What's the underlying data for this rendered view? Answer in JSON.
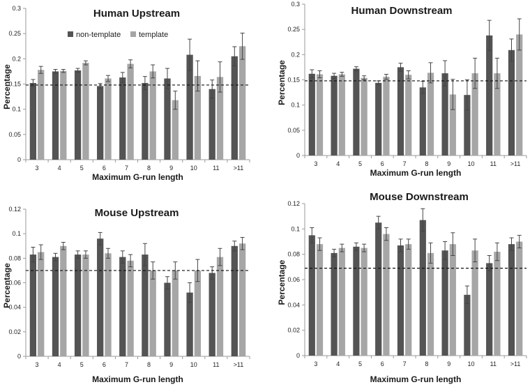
{
  "chart_data": [
    {
      "type": "bar",
      "title": "Human Upstream",
      "xlabel": "Maximum G-run length",
      "ylabel": "Percentage",
      "categories": [
        "3",
        "4",
        "5",
        "6",
        "7",
        "8",
        "9",
        "10",
        "11",
        ">11"
      ],
      "ylim": [
        0,
        0.3
      ],
      "yticks": [
        "0",
        "0.05",
        "0.1",
        "0.15",
        "0.2",
        "0.25",
        "0.3"
      ],
      "reference_line": 0.148,
      "legend": {
        "position": "top-left",
        "entries": [
          "non-template",
          "template"
        ]
      },
      "series": [
        {
          "name": "non-template",
          "color": "#545454",
          "values": [
            0.152,
            0.175,
            0.177,
            0.146,
            0.163,
            0.152,
            0.161,
            0.208,
            0.14,
            0.205
          ],
          "errors": [
            0.007,
            0.004,
            0.004,
            0.005,
            0.01,
            0.013,
            0.02,
            0.031,
            0.018,
            0.019
          ]
        },
        {
          "name": "template",
          "color": "#a6a6a6",
          "values": [
            0.178,
            0.176,
            0.192,
            0.161,
            0.19,
            0.175,
            0.118,
            0.166,
            0.164,
            0.225
          ],
          "errors": [
            0.007,
            0.003,
            0.004,
            0.006,
            0.008,
            0.013,
            0.018,
            0.03,
            0.03,
            0.026
          ]
        }
      ]
    },
    {
      "type": "bar",
      "title": "Human Downstream",
      "xlabel": "Maximum G-run length",
      "ylabel": "Percentage",
      "categories": [
        "3",
        "4",
        "5",
        "6",
        "7",
        "8",
        "9",
        "10",
        "11",
        ">11"
      ],
      "ylim": [
        0,
        0.3
      ],
      "yticks": [
        "0",
        "0.05",
        "0.1",
        "0.15",
        "0.2",
        "0.25",
        "0.3"
      ],
      "reference_line": 0.148,
      "series": [
        {
          "name": "non-template",
          "color": "#545454",
          "values": [
            0.162,
            0.158,
            0.172,
            0.144,
            0.175,
            0.135,
            0.163,
            0.12,
            0.238,
            0.209
          ],
          "errors": [
            0.008,
            0.005,
            0.004,
            0.004,
            0.008,
            0.012,
            0.025,
            0.03,
            0.03,
            0.022
          ]
        },
        {
          "name": "template",
          "color": "#a6a6a6",
          "values": [
            0.161,
            0.161,
            0.154,
            0.156,
            0.16,
            0.164,
            0.121,
            0.163,
            0.163,
            0.24
          ],
          "errors": [
            0.007,
            0.004,
            0.004,
            0.005,
            0.008,
            0.02,
            0.03,
            0.03,
            0.03,
            0.031
          ]
        }
      ]
    },
    {
      "type": "bar",
      "title": "Mouse Upstream",
      "xlabel": "Maximum G-run length",
      "ylabel": "Percentage",
      "categories": [
        "3",
        "4",
        "5",
        "6",
        "7",
        "8",
        "9",
        "10",
        "11",
        ">11"
      ],
      "ylim": [
        0,
        0.12
      ],
      "yticks": [
        "0",
        "0.02",
        "0.04",
        "0.06",
        "0.08",
        "0.1",
        "0.12"
      ],
      "reference_line": 0.07,
      "series": [
        {
          "name": "non-template",
          "color": "#545454",
          "values": [
            0.083,
            0.081,
            0.083,
            0.096,
            0.081,
            0.083,
            0.06,
            0.052,
            0.068,
            0.09
          ],
          "errors": [
            0.006,
            0.003,
            0.003,
            0.005,
            0.005,
            0.009,
            0.005,
            0.008,
            0.005,
            0.004
          ]
        },
        {
          "name": "template",
          "color": "#a6a6a6",
          "values": [
            0.085,
            0.09,
            0.083,
            0.084,
            0.078,
            0.07,
            0.07,
            0.07,
            0.081,
            0.092
          ],
          "errors": [
            0.006,
            0.003,
            0.003,
            0.004,
            0.005,
            0.007,
            0.007,
            0.009,
            0.007,
            0.005
          ]
        }
      ]
    },
    {
      "type": "bar",
      "title": "Mouse Downstream",
      "xlabel": "Maximum G-run length",
      "ylabel": "Percentage",
      "categories": [
        "3",
        "4",
        "5",
        "6",
        "7",
        "8",
        "9",
        "10",
        "11",
        ">11"
      ],
      "ylim": [
        0,
        0.12
      ],
      "yticks": [
        "0",
        "0.02",
        "0.04",
        "0.06",
        "0.08",
        "0.1",
        "0.12"
      ],
      "reference_line": 0.069,
      "series": [
        {
          "name": "non-template",
          "color": "#545454",
          "values": [
            0.095,
            0.081,
            0.086,
            0.105,
            0.087,
            0.107,
            0.083,
            0.048,
            0.073,
            0.088
          ],
          "errors": [
            0.006,
            0.003,
            0.003,
            0.005,
            0.005,
            0.009,
            0.007,
            0.007,
            0.006,
            0.005
          ]
        },
        {
          "name": "template",
          "color": "#a6a6a6",
          "values": [
            0.088,
            0.085,
            0.085,
            0.096,
            0.088,
            0.081,
            0.088,
            0.083,
            0.082,
            0.09
          ],
          "errors": [
            0.005,
            0.003,
            0.003,
            0.005,
            0.004,
            0.008,
            0.009,
            0.009,
            0.007,
            0.005
          ]
        }
      ]
    }
  ]
}
